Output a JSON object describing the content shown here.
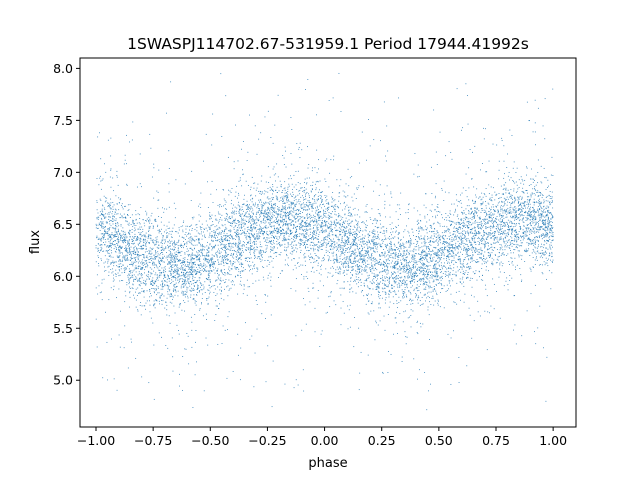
{
  "chart_data": {
    "type": "scatter",
    "title": "1SWASPJ114702.67-531959.1 Period 17944.41992s",
    "xlabel": "phase",
    "ylabel": "flux",
    "xlim": [
      -1.07,
      1.1
    ],
    "ylim": [
      4.55,
      8.1
    ],
    "x_ticks": [
      -1.0,
      -0.75,
      -0.5,
      -0.25,
      0.0,
      0.25,
      0.5,
      0.75,
      1.0
    ],
    "x_tick_labels": [
      "−1.00",
      "−0.75",
      "−0.50",
      "−0.25",
      "0.00",
      "0.25",
      "0.50",
      "0.75",
      "1.00"
    ],
    "y_ticks": [
      5.0,
      5.5,
      6.0,
      6.5,
      7.0,
      7.5,
      8.0
    ],
    "y_tick_labels": [
      "5.0",
      "5.5",
      "6.0",
      "6.5",
      "7.0",
      "7.5",
      "8.0"
    ],
    "grid": false,
    "marker_color": "#1f77b4",
    "series": [
      {
        "x_range": [
          -1.0,
          1.0
        ],
        "mean_flux": 6.32,
        "amplitude": 0.22,
        "max_phase": -0.15,
        "period_in_phase": 1.0,
        "scatter_sd": 0.2,
        "point_count": 9000,
        "outlier_fraction": 0.12,
        "flux_min": 4.7,
        "flux_max": 8.0
      }
    ]
  }
}
